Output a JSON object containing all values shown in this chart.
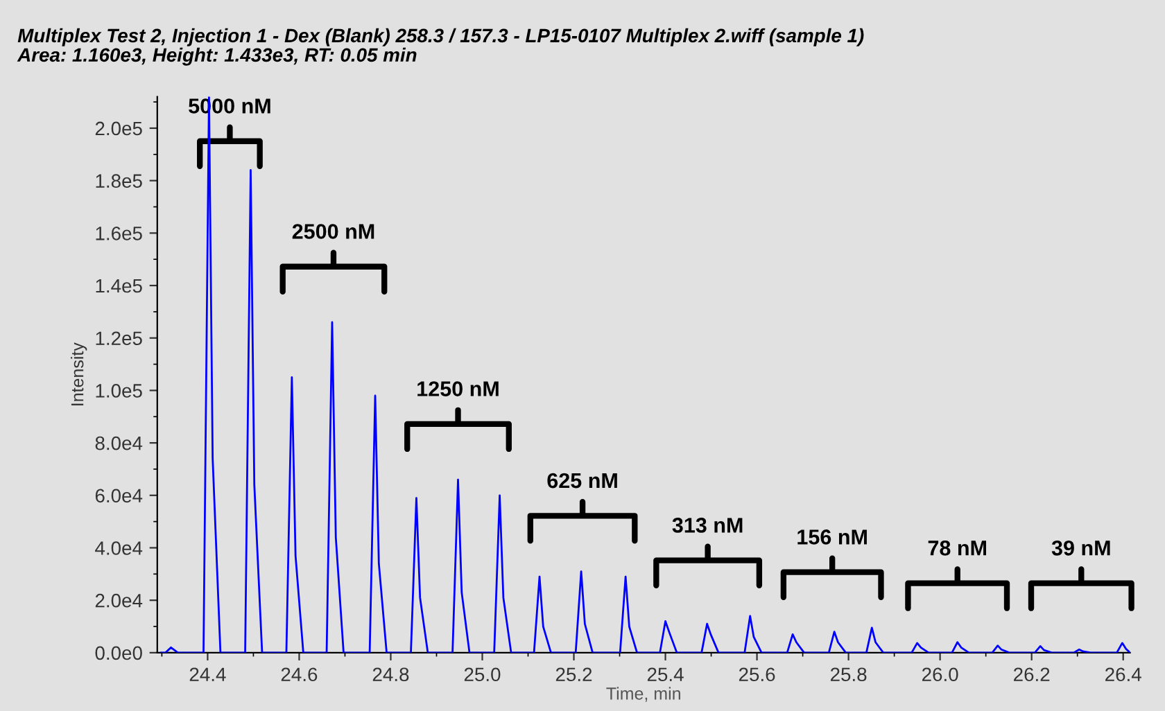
{
  "chart_data": {
    "type": "line",
    "title": "Multiplex Test 2, Injection 1 - Dex (Blank) 258.3 / 157.3 - LP15-0107 Multiplex 2.wiff (sample 1)",
    "subtitle": "Area: 1.160e3, Height: 1.433e3, RT: 0.05 min",
    "xlabel": "Time, min",
    "ylabel": "Intensity",
    "series": [
      {
        "color": "#0000ff",
        "x": [
          24.298,
          24.308,
          24.32,
          24.335,
          24.391,
          24.403,
          24.411,
          24.428,
          24.482,
          24.494,
          24.502,
          24.519,
          24.572,
          24.584,
          24.592,
          24.609,
          24.66,
          24.672,
          24.68,
          24.697,
          24.754,
          24.766,
          24.774,
          24.791,
          24.844,
          24.856,
          24.864,
          24.881,
          24.935,
          24.947,
          24.955,
          24.972,
          25.026,
          25.038,
          25.046,
          25.063,
          25.113,
          25.125,
          25.133,
          25.15,
          25.204,
          25.216,
          25.224,
          25.241,
          25.301,
          25.313,
          25.321,
          25.338,
          25.388,
          25.4,
          25.408,
          25.425,
          25.479,
          25.491,
          25.499,
          25.516,
          25.573,
          25.585,
          25.593,
          25.61,
          25.666,
          25.678,
          25.686,
          25.703,
          25.757,
          25.769,
          25.777,
          25.794,
          25.839,
          25.851,
          25.859,
          25.876,
          25.938,
          25.95,
          25.958,
          25.975,
          26.026,
          26.038,
          26.046,
          26.063,
          26.114,
          26.126,
          26.134,
          26.151,
          26.207,
          26.219,
          26.227,
          26.244,
          26.292,
          26.304,
          26.312,
          26.329,
          26.386,
          26.398,
          26.406,
          26.415
        ],
        "values": [
          0,
          0,
          2000,
          0,
          0,
          212000,
          74000,
          0,
          0,
          184000,
          64000,
          0,
          0,
          105000,
          37000,
          0,
          0,
          126000,
          44000,
          0,
          0,
          98000,
          34000,
          0,
          0,
          59000,
          21000,
          0,
          0,
          66000,
          23000,
          0,
          0,
          60000,
          21000,
          0,
          0,
          29000,
          10000,
          0,
          0,
          31000,
          11000,
          0,
          0,
          29000,
          10000,
          0,
          0,
          12000,
          8000,
          0,
          0,
          11000,
          7000,
          0,
          0,
          14000,
          6000,
          0,
          0,
          7000,
          4000,
          0,
          0,
          8000,
          4000,
          0,
          0,
          9500,
          4000,
          0,
          0,
          3700,
          2000,
          0,
          0,
          4000,
          2000,
          0,
          0,
          2700,
          1200,
          0,
          0,
          2500,
          1000,
          0,
          0,
          1200,
          500,
          0,
          0,
          3700,
          1500,
          0
        ]
      }
    ],
    "xlim": [
      24.29,
      26.415
    ],
    "ylim": [
      0,
      212000
    ],
    "xticks": [
      24.4,
      24.6,
      24.8,
      {
        "value": 25.0,
        "label": "25.0"
      },
      25.2,
      25.4,
      25.6,
      25.8,
      {
        "value": 26.0,
        "label": "26.0"
      },
      26.2,
      26.4
    ],
    "yticks": [
      {
        "value": 0,
        "label": "0.0e0"
      },
      {
        "value": 20000,
        "label": "2.0e4"
      },
      {
        "value": 40000,
        "label": "4.0e4"
      },
      {
        "value": 60000,
        "label": "6.0e4"
      },
      {
        "value": 80000,
        "label": "8.0e4"
      },
      {
        "value": 100000,
        "label": "1.0e5"
      },
      {
        "value": 120000,
        "label": "1.2e5"
      },
      {
        "value": 140000,
        "label": "1.4e5"
      },
      {
        "value": 160000,
        "label": "1.6e5"
      },
      {
        "value": 180000,
        "label": "1.8e5"
      },
      {
        "value": 200000,
        "label": "2.0e5"
      }
    ],
    "grid": false,
    "legend": false,
    "marker": "none",
    "line_style": "solid",
    "annotations": [
      "5000 nM",
      "2500 nM",
      "1250 nM",
      "625 nM",
      "313 nM",
      "156 nM",
      "78 nM",
      "39 nM"
    ]
  }
}
